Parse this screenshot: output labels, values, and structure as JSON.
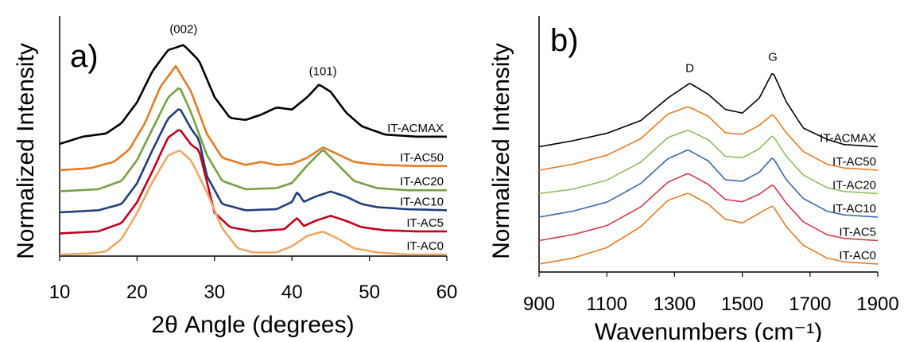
{
  "chart_data": [
    {
      "type": "line",
      "panel_label": "a)",
      "xlabel": "2θ Angle (degrees)",
      "ylabel": "Normalized Intensity",
      "xlim": [
        10,
        60
      ],
      "xticks": [
        10,
        20,
        30,
        40,
        50,
        60
      ],
      "grid": false,
      "legend": "inline labels at right end of each trace",
      "annotations": [
        {
          "text": "(002)",
          "x": 26
        },
        {
          "text": "(101)",
          "x": 44
        }
      ],
      "series": [
        {
          "name": "IT-ACMAX",
          "color": "#000000",
          "offset": 5.0,
          "scale": 1.0,
          "points": [
            [
              10,
              0.05
            ],
            [
              13,
              0.12
            ],
            [
              16,
              0.15
            ],
            [
              18,
              0.25
            ],
            [
              20,
              0.45
            ],
            [
              22,
              0.75
            ],
            [
              24,
              0.95
            ],
            [
              26,
              1.0
            ],
            [
              28,
              0.85
            ],
            [
              30,
              0.5
            ],
            [
              32,
              0.3
            ],
            [
              34,
              0.28
            ],
            [
              36,
              0.33
            ],
            [
              38,
              0.4
            ],
            [
              40,
              0.38
            ],
            [
              42,
              0.5
            ],
            [
              43.5,
              0.62
            ],
            [
              45,
              0.55
            ],
            [
              47,
              0.35
            ],
            [
              49,
              0.22
            ],
            [
              52,
              0.14
            ],
            [
              56,
              0.12
            ],
            [
              60,
              0.12
            ]
          ]
        },
        {
          "name": "IT-AC50",
          "color": "#E57B25",
          "offset": 4.0,
          "scale": 1.0,
          "points": [
            [
              10,
              0.0
            ],
            [
              14,
              0.02
            ],
            [
              17,
              0.08
            ],
            [
              19,
              0.2
            ],
            [
              21,
              0.45
            ],
            [
              23,
              0.8
            ],
            [
              25,
              1.0
            ],
            [
              27,
              0.75
            ],
            [
              29,
              0.35
            ],
            [
              31,
              0.12
            ],
            [
              34,
              0.05
            ],
            [
              36,
              0.08
            ],
            [
              38,
              0.05
            ],
            [
              40,
              0.06
            ],
            [
              42,
              0.12
            ],
            [
              44,
              0.22
            ],
            [
              46,
              0.15
            ],
            [
              48,
              0.08
            ],
            [
              50,
              0.06
            ],
            [
              52,
              0.05
            ],
            [
              56,
              0.04
            ],
            [
              60,
              0.04
            ]
          ]
        },
        {
          "name": "IT-AC20",
          "color": "#77A043",
          "offset": 3.0,
          "scale": 1.0,
          "points": [
            [
              10,
              0.0
            ],
            [
              15,
              0.02
            ],
            [
              18,
              0.1
            ],
            [
              20,
              0.3
            ],
            [
              22,
              0.6
            ],
            [
              24,
              0.9
            ],
            [
              25.5,
              1.0
            ],
            [
              27,
              0.75
            ],
            [
              29,
              0.35
            ],
            [
              31,
              0.1
            ],
            [
              34,
              0.02
            ],
            [
              38,
              0.03
            ],
            [
              40,
              0.08
            ],
            [
              42,
              0.25
            ],
            [
              44,
              0.4
            ],
            [
              46,
              0.25
            ],
            [
              48,
              0.1
            ],
            [
              51,
              0.03
            ],
            [
              55,
              0.01
            ],
            [
              60,
              0.01
            ]
          ]
        },
        {
          "name": "IT-AC10",
          "color": "#203F79",
          "offset": 2.0,
          "scale": 1.0,
          "points": [
            [
              10,
              0.0
            ],
            [
              15,
              0.02
            ],
            [
              18,
              0.08
            ],
            [
              20,
              0.28
            ],
            [
              22,
              0.6
            ],
            [
              24,
              0.9
            ],
            [
              25.5,
              1.0
            ],
            [
              27,
              0.8
            ],
            [
              28,
              0.7
            ],
            [
              29,
              0.35
            ],
            [
              31,
              0.08
            ],
            [
              34,
              0.02
            ],
            [
              38,
              0.03
            ],
            [
              40,
              0.1
            ],
            [
              40.7,
              0.2
            ],
            [
              41.5,
              0.1
            ],
            [
              43,
              0.15
            ],
            [
              45,
              0.2
            ],
            [
              47,
              0.15
            ],
            [
              49,
              0.08
            ],
            [
              51,
              0.05
            ],
            [
              55,
              0.03
            ],
            [
              60,
              0.02
            ]
          ]
        },
        {
          "name": "IT-AC5",
          "color": "#C0001A",
          "offset": 1.0,
          "scale": 1.0,
          "points": [
            [
              10,
              0.0
            ],
            [
              15,
              0.02
            ],
            [
              18,
              0.1
            ],
            [
              20,
              0.3
            ],
            [
              22,
              0.6
            ],
            [
              24,
              0.92
            ],
            [
              25.5,
              1.0
            ],
            [
              27,
              0.85
            ],
            [
              28,
              0.8
            ],
            [
              29,
              0.5
            ],
            [
              30,
              0.2
            ],
            [
              32,
              0.06
            ],
            [
              35,
              0.02
            ],
            [
              39,
              0.04
            ],
            [
              40.7,
              0.15
            ],
            [
              41.5,
              0.07
            ],
            [
              43,
              0.12
            ],
            [
              45,
              0.17
            ],
            [
              47,
              0.12
            ],
            [
              49,
              0.06
            ],
            [
              52,
              0.03
            ],
            [
              56,
              0.02
            ],
            [
              60,
              0.02
            ]
          ]
        },
        {
          "name": "IT-AC0",
          "color": "#EDA864",
          "offset": 0.0,
          "scale": 1.0,
          "points": [
            [
              10,
              0.0
            ],
            [
              14,
              0.01
            ],
            [
              16,
              0.03
            ],
            [
              18,
              0.15
            ],
            [
              20,
              0.4
            ],
            [
              22,
              0.7
            ],
            [
              24,
              0.95
            ],
            [
              25.5,
              1.0
            ],
            [
              27,
              0.9
            ],
            [
              29,
              0.6
            ],
            [
              31,
              0.25
            ],
            [
              33,
              0.06
            ],
            [
              35,
              0.02
            ],
            [
              38,
              0.02
            ],
            [
              40,
              0.08
            ],
            [
              42,
              0.18
            ],
            [
              44,
              0.22
            ],
            [
              46,
              0.15
            ],
            [
              48,
              0.06
            ],
            [
              51,
              0.02
            ],
            [
              55,
              0.0
            ],
            [
              60,
              0.0
            ]
          ]
        }
      ]
    },
    {
      "type": "line",
      "panel_label": "b)",
      "xlabel": "Wavenumbers (cm⁻¹)",
      "ylabel": "Normalized Intensity",
      "xlim": [
        900,
        1900
      ],
      "xticks": [
        900,
        1100,
        1300,
        1500,
        1700,
        1900
      ],
      "grid": false,
      "legend": "inline labels at right end of each trace",
      "annotations": [
        {
          "text": "D",
          "x": 1345
        },
        {
          "text": "G",
          "x": 1590
        }
      ],
      "series": [
        {
          "name": "IT-ACMAX",
          "color": "#000000",
          "offset": 5.0,
          "scale": 1.0,
          "points": [
            [
              900,
              0.0
            ],
            [
              1000,
              0.08
            ],
            [
              1100,
              0.18
            ],
            [
              1200,
              0.35
            ],
            [
              1280,
              0.65
            ],
            [
              1345,
              0.85
            ],
            [
              1400,
              0.7
            ],
            [
              1450,
              0.5
            ],
            [
              1500,
              0.45
            ],
            [
              1550,
              0.65
            ],
            [
              1590,
              1.0
            ],
            [
              1630,
              0.6
            ],
            [
              1680,
              0.25
            ],
            [
              1750,
              0.1
            ],
            [
              1800,
              0.03
            ],
            [
              1900,
              0.0
            ]
          ]
        },
        {
          "name": "IT-AC50",
          "color": "#E57B25",
          "offset": 4.0,
          "scale": 1.0,
          "points": [
            [
              900,
              0.0
            ],
            [
              1000,
              0.08
            ],
            [
              1100,
              0.2
            ],
            [
              1200,
              0.42
            ],
            [
              1280,
              0.75
            ],
            [
              1340,
              0.85
            ],
            [
              1400,
              0.72
            ],
            [
              1450,
              0.5
            ],
            [
              1500,
              0.48
            ],
            [
              1550,
              0.6
            ],
            [
              1590,
              0.75
            ],
            [
              1630,
              0.5
            ],
            [
              1680,
              0.25
            ],
            [
              1750,
              0.08
            ],
            [
              1800,
              0.03
            ],
            [
              1900,
              0.0
            ]
          ]
        },
        {
          "name": "IT-AC20",
          "color": "#8DBE5D",
          "offset": 3.0,
          "scale": 1.0,
          "points": [
            [
              900,
              0.0
            ],
            [
              1000,
              0.06
            ],
            [
              1100,
              0.18
            ],
            [
              1200,
              0.42
            ],
            [
              1280,
              0.75
            ],
            [
              1340,
              0.85
            ],
            [
              1400,
              0.72
            ],
            [
              1450,
              0.5
            ],
            [
              1500,
              0.48
            ],
            [
              1550,
              0.6
            ],
            [
              1590,
              0.78
            ],
            [
              1630,
              0.5
            ],
            [
              1680,
              0.25
            ],
            [
              1750,
              0.08
            ],
            [
              1800,
              0.03
            ],
            [
              1900,
              0.0
            ]
          ]
        },
        {
          "name": "IT-AC10",
          "color": "#3B67AC",
          "offset": 2.0,
          "scale": 1.0,
          "points": [
            [
              900,
              0.0
            ],
            [
              1000,
              0.08
            ],
            [
              1100,
              0.2
            ],
            [
              1200,
              0.45
            ],
            [
              1280,
              0.78
            ],
            [
              1340,
              0.9
            ],
            [
              1400,
              0.75
            ],
            [
              1450,
              0.5
            ],
            [
              1500,
              0.48
            ],
            [
              1550,
              0.6
            ],
            [
              1590,
              0.8
            ],
            [
              1630,
              0.5
            ],
            [
              1680,
              0.25
            ],
            [
              1750,
              0.08
            ],
            [
              1800,
              0.03
            ],
            [
              1900,
              0.0
            ]
          ]
        },
        {
          "name": "IT-AC5",
          "color": "#CF3A4A",
          "offset": 1.0,
          "scale": 1.0,
          "points": [
            [
              900,
              0.0
            ],
            [
              1000,
              0.08
            ],
            [
              1100,
              0.2
            ],
            [
              1200,
              0.45
            ],
            [
              1280,
              0.78
            ],
            [
              1340,
              0.9
            ],
            [
              1400,
              0.75
            ],
            [
              1450,
              0.55
            ],
            [
              1500,
              0.52
            ],
            [
              1550,
              0.62
            ],
            [
              1590,
              0.75
            ],
            [
              1630,
              0.5
            ],
            [
              1680,
              0.25
            ],
            [
              1750,
              0.08
            ],
            [
              1800,
              0.03
            ],
            [
              1900,
              0.0
            ]
          ]
        },
        {
          "name": "IT-AC0",
          "color": "#E57B25",
          "offset": 0.0,
          "scale": 1.0,
          "points": [
            [
              900,
              0.0
            ],
            [
              1000,
              0.08
            ],
            [
              1100,
              0.22
            ],
            [
              1200,
              0.5
            ],
            [
              1280,
              0.85
            ],
            [
              1340,
              0.95
            ],
            [
              1400,
              0.8
            ],
            [
              1450,
              0.6
            ],
            [
              1500,
              0.55
            ],
            [
              1550,
              0.68
            ],
            [
              1590,
              0.78
            ],
            [
              1630,
              0.5
            ],
            [
              1680,
              0.25
            ],
            [
              1750,
              0.08
            ],
            [
              1800,
              0.03
            ],
            [
              1900,
              0.0
            ]
          ]
        }
      ]
    }
  ]
}
